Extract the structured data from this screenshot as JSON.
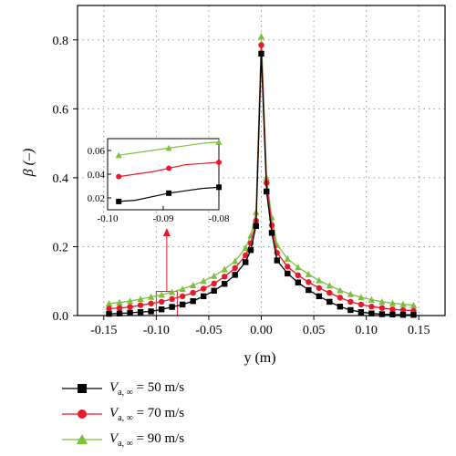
{
  "chart_data": {
    "type": "line",
    "xlabel": "y (m)",
    "ylabel": "β (–)",
    "xlim": [
      -0.175,
      0.175
    ],
    "ylim": [
      0,
      0.9
    ],
    "xticks": [
      "-0.15",
      "-0.10",
      "-0.05",
      "0.00",
      "0.05",
      "0.10",
      "0.15"
    ],
    "yticks": [
      "0.0",
      "0.2",
      "0.4",
      "0.6",
      "0.8"
    ],
    "grid": "dotted",
    "legend_position": "below",
    "legend_template": "V_a,∞ = ... m/s",
    "series": [
      {
        "name": "Va,∞ = 50 m/s",
        "label_main": "V",
        "label_sub": "a, ∞",
        "label_value": "= 50 m/s",
        "color": "#000000",
        "marker": "square",
        "points": [
          [
            -0.145,
            0.005
          ],
          [
            -0.135,
            0.006
          ],
          [
            -0.125,
            0.008
          ],
          [
            -0.115,
            0.01
          ],
          [
            -0.105,
            0.012
          ],
          [
            -0.095,
            0.018
          ],
          [
            -0.085,
            0.025
          ],
          [
            -0.075,
            0.032
          ],
          [
            -0.065,
            0.042
          ],
          [
            -0.055,
            0.056
          ],
          [
            -0.045,
            0.072
          ],
          [
            -0.035,
            0.092
          ],
          [
            -0.025,
            0.118
          ],
          [
            -0.015,
            0.155
          ],
          [
            -0.01,
            0.19
          ],
          [
            -0.005,
            0.26
          ],
          [
            0.0,
            0.76
          ],
          [
            0.005,
            0.36
          ],
          [
            0.01,
            0.24
          ],
          [
            0.015,
            0.16
          ],
          [
            0.025,
            0.122
          ],
          [
            0.035,
            0.096
          ],
          [
            0.045,
            0.074
          ],
          [
            0.055,
            0.056
          ],
          [
            0.065,
            0.04
          ],
          [
            0.075,
            0.026
          ],
          [
            0.085,
            0.016
          ],
          [
            0.095,
            0.01
          ],
          [
            0.105,
            0.006
          ],
          [
            0.115,
            0.004
          ],
          [
            0.125,
            0.003
          ],
          [
            0.135,
            0.002
          ],
          [
            0.145,
            0.002
          ]
        ]
      },
      {
        "name": "Va,∞ = 70 m/s",
        "label_main": "V",
        "label_sub": "a, ∞",
        "label_value": "= 70 m/s",
        "color": "#e8182a",
        "marker": "circle",
        "points": [
          [
            -0.145,
            0.02
          ],
          [
            -0.135,
            0.022
          ],
          [
            -0.125,
            0.025
          ],
          [
            -0.115,
            0.03
          ],
          [
            -0.105,
            0.035
          ],
          [
            -0.095,
            0.04
          ],
          [
            -0.085,
            0.048
          ],
          [
            -0.075,
            0.056
          ],
          [
            -0.065,
            0.066
          ],
          [
            -0.055,
            0.078
          ],
          [
            -0.045,
            0.093
          ],
          [
            -0.035,
            0.113
          ],
          [
            -0.025,
            0.138
          ],
          [
            -0.015,
            0.175
          ],
          [
            -0.01,
            0.21
          ],
          [
            -0.005,
            0.275
          ],
          [
            0.0,
            0.785
          ],
          [
            0.005,
            0.385
          ],
          [
            0.01,
            0.262
          ],
          [
            0.015,
            0.182
          ],
          [
            0.025,
            0.142
          ],
          [
            0.035,
            0.117
          ],
          [
            0.045,
            0.097
          ],
          [
            0.055,
            0.08
          ],
          [
            0.065,
            0.066
          ],
          [
            0.075,
            0.052
          ],
          [
            0.085,
            0.04
          ],
          [
            0.095,
            0.032
          ],
          [
            0.105,
            0.026
          ],
          [
            0.115,
            0.022
          ],
          [
            0.125,
            0.018
          ],
          [
            0.135,
            0.016
          ],
          [
            0.145,
            0.014
          ]
        ]
      },
      {
        "name": "Va,∞ = 90 m/s",
        "label_main": "V",
        "label_sub": "a, ∞",
        "label_value": "= 90 m/s",
        "color": "#7dbf3f",
        "marker": "triangle",
        "points": [
          [
            -0.145,
            0.035
          ],
          [
            -0.135,
            0.038
          ],
          [
            -0.125,
            0.042
          ],
          [
            -0.115,
            0.048
          ],
          [
            -0.105,
            0.054
          ],
          [
            -0.095,
            0.06
          ],
          [
            -0.085,
            0.068
          ],
          [
            -0.075,
            0.077
          ],
          [
            -0.065,
            0.088
          ],
          [
            -0.055,
            0.1
          ],
          [
            -0.045,
            0.115
          ],
          [
            -0.035,
            0.134
          ],
          [
            -0.025,
            0.158
          ],
          [
            -0.015,
            0.196
          ],
          [
            -0.01,
            0.232
          ],
          [
            -0.005,
            0.3
          ],
          [
            0.0,
            0.81
          ],
          [
            0.005,
            0.4
          ],
          [
            0.01,
            0.285
          ],
          [
            0.015,
            0.205
          ],
          [
            0.025,
            0.165
          ],
          [
            0.035,
            0.14
          ],
          [
            0.045,
            0.12
          ],
          [
            0.055,
            0.102
          ],
          [
            0.065,
            0.087
          ],
          [
            0.075,
            0.073
          ],
          [
            0.085,
            0.062
          ],
          [
            0.095,
            0.053
          ],
          [
            0.105,
            0.046
          ],
          [
            0.115,
            0.04
          ],
          [
            0.125,
            0.036
          ],
          [
            0.135,
            0.033
          ],
          [
            0.145,
            0.03
          ]
        ]
      }
    ],
    "inset": {
      "xlim": [
        -0.1,
        -0.08
      ],
      "ylim": [
        0.01,
        0.07
      ],
      "xticks": [
        "-0.10",
        "-0.09",
        "-0.08"
      ],
      "yticks": [
        "0.02",
        "0.04",
        "0.06"
      ],
      "series_points": [
        [
          [
            -0.098,
            0.017
          ],
          [
            -0.095,
            0.018
          ],
          [
            -0.092,
            0.021
          ],
          [
            -0.089,
            0.024
          ],
          [
            -0.086,
            0.026
          ],
          [
            -0.083,
            0.028
          ],
          [
            -0.08,
            0.029
          ]
        ],
        [
          [
            -0.098,
            0.038
          ],
          [
            -0.095,
            0.04
          ],
          [
            -0.092,
            0.042
          ],
          [
            -0.089,
            0.045
          ],
          [
            -0.086,
            0.048
          ],
          [
            -0.083,
            0.049
          ],
          [
            -0.08,
            0.05
          ]
        ],
        [
          [
            -0.098,
            0.056
          ],
          [
            -0.095,
            0.058
          ],
          [
            -0.092,
            0.06
          ],
          [
            -0.089,
            0.062
          ],
          [
            -0.086,
            0.064
          ],
          [
            -0.083,
            0.066
          ],
          [
            -0.08,
            0.067
          ]
        ]
      ],
      "highlight_region": {
        "x": [
          -0.1,
          -0.08
        ],
        "y": [
          0.0,
          0.07
        ]
      },
      "highlight_color": "#e8182a"
    }
  }
}
